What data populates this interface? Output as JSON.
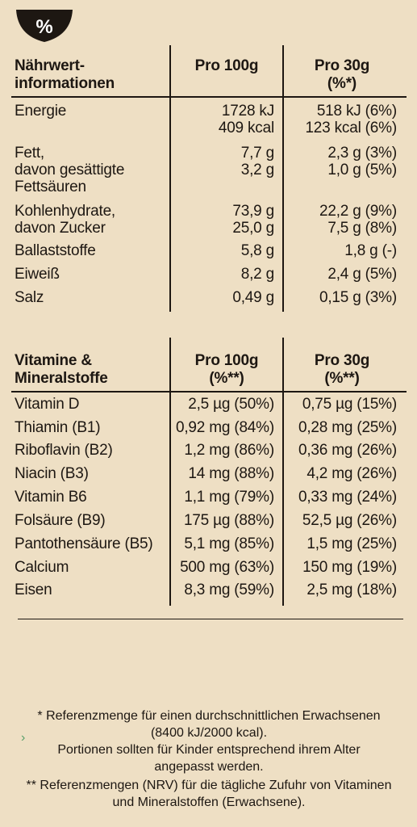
{
  "badge": {
    "symbol": "%"
  },
  "nutrition": {
    "header": {
      "label_line1": "Nährwert-",
      "label_line2": "informationen",
      "col1": "Pro 100g",
      "col2_line1": "Pro 30g",
      "col2_line2": "(%*)"
    },
    "rows": [
      {
        "label": [
          "Energie"
        ],
        "v1": [
          "1728 kJ",
          "409 kcal"
        ],
        "v2": [
          "518 kJ (6%)",
          "123 kcal (6%)"
        ]
      },
      {
        "label": [
          "Fett,",
          "davon gesättigte",
          "Fettsäuren"
        ],
        "v1": [
          "7,7 g",
          "3,2 g"
        ],
        "v2": [
          "2,3 g (3%)",
          "1,0 g (5%)"
        ]
      },
      {
        "label": [
          "Kohlenhydrate,",
          "davon Zucker"
        ],
        "v1": [
          "73,9 g",
          "25,0 g"
        ],
        "v2": [
          "22,2 g (9%)",
          "7,5 g (8%)"
        ]
      },
      {
        "label": [
          "Ballaststoffe"
        ],
        "v1": [
          "5,8 g"
        ],
        "v2": [
          "1,8 g (-)"
        ]
      },
      {
        "label": [
          "Eiweiß"
        ],
        "v1": [
          "8,2 g"
        ],
        "v2": [
          "2,4 g (5%)"
        ]
      },
      {
        "label": [
          "Salz"
        ],
        "v1": [
          "0,49 g"
        ],
        "v2": [
          "0,15 g (3%)"
        ]
      }
    ]
  },
  "vitamins": {
    "header": {
      "label_line1": "Vitamine &",
      "label_line2": "Mineralstoffe",
      "col1_line1": "Pro 100g",
      "col1_line2": "(%**)",
      "col2_line1": "Pro 30g",
      "col2_line2": "(%**)"
    },
    "rows": [
      {
        "label": "Vitamin D",
        "v1": "2,5 µg (50%)",
        "v2": "0,75 µg (15%)"
      },
      {
        "label": "Thiamin (B1)",
        "v1": "0,92 mg (84%)",
        "v2": "0,28 mg (25%)"
      },
      {
        "label": "Riboflavin (B2)",
        "v1": "1,2 mg (86%)",
        "v2": "0,36 mg (26%)"
      },
      {
        "label": "Niacin (B3)",
        "v1": "14 mg (88%)",
        "v2": "4,2 mg (26%)"
      },
      {
        "label": "Vitamin B6",
        "v1": "1,1 mg (79%)",
        "v2": "0,33 mg (24%)"
      },
      {
        "label": "Folsäure (B9)",
        "v1": "175 µg (88%)",
        "v2": "52,5 µg (26%)"
      },
      {
        "label": "Pantothensäure (B5)",
        "v1": "5,1 mg (85%)",
        "v2": "1,5 mg (25%)"
      },
      {
        "label": "Calcium",
        "v1": "500 mg (63%)",
        "v2": "150 mg (19%)"
      },
      {
        "label": "Eisen",
        "v1": "8,3 mg (59%)",
        "v2": "2,5 mg (18%)"
      }
    ]
  },
  "footnotes": [
    "* Referenzmenge für einen durchschnittlichen Erwachsenen",
    "(8400 kJ/2000 kcal).",
    "Portionen sollten für Kinder entsprechend ihrem Alter",
    "angepasst werden.",
    "** Referenzmengen (NRV) für die tägliche Zufuhr von Vitaminen",
    "und Mineralstoffen (Erwachsene)."
  ],
  "colors": {
    "background": "#eedfc4",
    "ink": "#1d1712"
  }
}
